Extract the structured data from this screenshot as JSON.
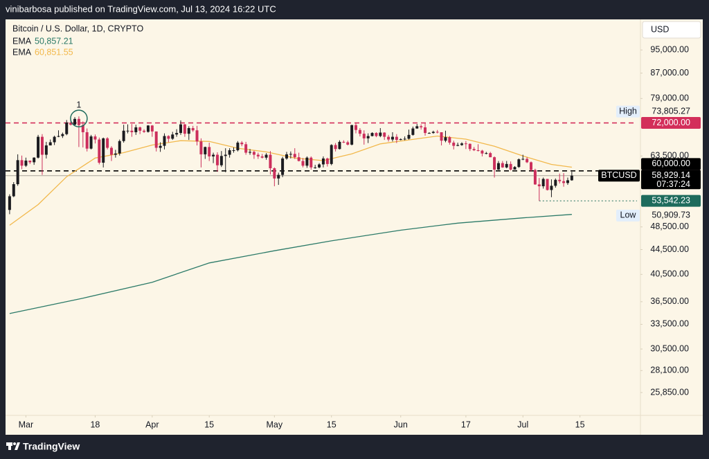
{
  "header": "vinibarbosa published on TradingView.com, Jul 13, 2024 16:22 UTC",
  "footer": {
    "brand": "TradingView"
  },
  "chart_data": {
    "type": "candlestick",
    "title": "Bitcoin / U.S. Dollar, 1D, CRYPTO",
    "currency": "USD",
    "log_scale": true,
    "up_color": "#1b1b1f",
    "down_color": "#cc2f5c",
    "xlim": [
      "2024-02-25",
      "2024-07-29"
    ],
    "xticks": [
      {
        "value": "2024-03-01",
        "label": "Mar"
      },
      {
        "value": "2024-03-18",
        "label": "18"
      },
      {
        "value": "2024-04-01",
        "label": "Apr"
      },
      {
        "value": "2024-04-15",
        "label": "15"
      },
      {
        "value": "2024-05-01",
        "label": "May"
      },
      {
        "value": "2024-05-15",
        "label": "15"
      },
      {
        "value": "2024-06-01",
        "label": "Jun"
      },
      {
        "value": "2024-06-17",
        "label": "17"
      },
      {
        "value": "2024-07-01",
        "label": "Jul"
      },
      {
        "value": "2024-07-15",
        "label": "15"
      }
    ],
    "ylim": [
      23700,
      106700
    ],
    "yticks": [
      {
        "value": 95000,
        "label": "95,000.00"
      },
      {
        "value": 87000,
        "label": "87,000.00"
      },
      {
        "value": 79000,
        "label": "79,000.00"
      },
      {
        "value": 63500,
        "label": "63,500.00"
      },
      {
        "value": 48500,
        "label": "48,500.00"
      },
      {
        "value": 44500,
        "label": "44,500.00"
      },
      {
        "value": 40500,
        "label": "40,500.00"
      },
      {
        "value": 36500,
        "label": "36,500.00"
      },
      {
        "value": 33500,
        "label": "33,500.00"
      },
      {
        "value": 30500,
        "label": "30,500.00"
      },
      {
        "value": 28100,
        "label": "28,100.00"
      },
      {
        "value": 25850,
        "label": "25,850.00"
      }
    ],
    "x": [
      "2024-02-26",
      "2024-02-27",
      "2024-02-28",
      "2024-02-29",
      "2024-03-01",
      "2024-03-02",
      "2024-03-03",
      "2024-03-04",
      "2024-03-05",
      "2024-03-06",
      "2024-03-07",
      "2024-03-08",
      "2024-03-09",
      "2024-03-10",
      "2024-03-11",
      "2024-03-12",
      "2024-03-13",
      "2024-03-14",
      "2024-03-15",
      "2024-03-16",
      "2024-03-17",
      "2024-03-18",
      "2024-03-19",
      "2024-03-20",
      "2024-03-21",
      "2024-03-22",
      "2024-03-23",
      "2024-03-24",
      "2024-03-25",
      "2024-03-26",
      "2024-03-27",
      "2024-03-28",
      "2024-03-29",
      "2024-03-30",
      "2024-03-31",
      "2024-04-01",
      "2024-04-02",
      "2024-04-03",
      "2024-04-04",
      "2024-04-05",
      "2024-04-06",
      "2024-04-07",
      "2024-04-08",
      "2024-04-09",
      "2024-04-10",
      "2024-04-11",
      "2024-04-12",
      "2024-04-13",
      "2024-04-14",
      "2024-04-15",
      "2024-04-16",
      "2024-04-17",
      "2024-04-18",
      "2024-04-19",
      "2024-04-20",
      "2024-04-21",
      "2024-04-22",
      "2024-04-23",
      "2024-04-24",
      "2024-04-25",
      "2024-04-26",
      "2024-04-27",
      "2024-04-28",
      "2024-04-29",
      "2024-04-30",
      "2024-05-01",
      "2024-05-02",
      "2024-05-03",
      "2024-05-04",
      "2024-05-05",
      "2024-05-06",
      "2024-05-07",
      "2024-05-08",
      "2024-05-09",
      "2024-05-10",
      "2024-05-11",
      "2024-05-12",
      "2024-05-13",
      "2024-05-14",
      "2024-05-15",
      "2024-05-16",
      "2024-05-17",
      "2024-05-18",
      "2024-05-19",
      "2024-05-20",
      "2024-05-21",
      "2024-05-22",
      "2024-05-23",
      "2024-05-24",
      "2024-05-25",
      "2024-05-26",
      "2024-05-27",
      "2024-05-28",
      "2024-05-29",
      "2024-05-30",
      "2024-05-31",
      "2024-06-01",
      "2024-06-02",
      "2024-06-03",
      "2024-06-04",
      "2024-06-05",
      "2024-06-06",
      "2024-06-07",
      "2024-06-08",
      "2024-06-09",
      "2024-06-10",
      "2024-06-11",
      "2024-06-12",
      "2024-06-13",
      "2024-06-14",
      "2024-06-15",
      "2024-06-16",
      "2024-06-17",
      "2024-06-18",
      "2024-06-19",
      "2024-06-20",
      "2024-06-21",
      "2024-06-22",
      "2024-06-23",
      "2024-06-24",
      "2024-06-25",
      "2024-06-26",
      "2024-06-27",
      "2024-06-28",
      "2024-06-29",
      "2024-06-30",
      "2024-07-01",
      "2024-07-02",
      "2024-07-03",
      "2024-07-04",
      "2024-07-05",
      "2024-07-06",
      "2024-07-07",
      "2024-07-08",
      "2024-07-09",
      "2024-07-10",
      "2024-07-11",
      "2024-07-12",
      "2024-07-13"
    ],
    "open": [
      51730,
      54490,
      57050,
      62500,
      61200,
      62400,
      62000,
      63100,
      68300,
      63800,
      66100,
      66900,
      68300,
      68500,
      69000,
      72100,
      71500,
      73100,
      71400,
      69500,
      65300,
      68400,
      67600,
      61900,
      67900,
      65500,
      63800,
      64100,
      67200,
      69900,
      69900,
      69500,
      70800,
      69900,
      69600,
      71300,
      69700,
      65500,
      66000,
      68500,
      67800,
      68900,
      69300,
      71600,
      69100,
      70600,
      70000,
      67100,
      63900,
      65700,
      63400,
      63800,
      61300,
      63500,
      63800,
      64900,
      64900,
      66800,
      66400,
      64300,
      64500,
      63800,
      63400,
      63100,
      63800,
      60600,
      58300,
      59100,
      62900,
      63900,
      64000,
      63200,
      62300,
      61200,
      63100,
      60800,
      60800,
      61500,
      62900,
      61600,
      66200,
      65200,
      67000,
      66900,
      66300,
      71400,
      70100,
      69100,
      67900,
      68500,
      69300,
      68500,
      69400,
      68300,
      67600,
      68300,
      67500,
      67700,
      67800,
      68800,
      70500,
      71100,
      70800,
      69300,
      69300,
      69600,
      69500,
      67300,
      68200,
      66800,
      66000,
      66200,
      66600,
      66500,
      65200,
      64900,
      64800,
      64100,
      64200,
      63200,
      60300,
      61800,
      60800,
      61600,
      60300,
      60900,
      62700,
      62800,
      62000,
      60200,
      57000,
      56600,
      58200,
      55800,
      56700,
      58000,
      57700,
      57300,
      57900
    ],
    "high": [
      54900,
      57500,
      63900,
      63600,
      63100,
      62400,
      63200,
      68800,
      69000,
      67000,
      67600,
      68600,
      70000,
      69400,
      72800,
      72900,
      73600,
      73805.27,
      72400,
      70500,
      68800,
      68900,
      68100,
      68100,
      68200,
      65900,
      65000,
      67600,
      71500,
      71600,
      71700,
      71500,
      71000,
      70300,
      71400,
      71400,
      69700,
      66900,
      69200,
      68700,
      69600,
      70300,
      72700,
      71700,
      71100,
      71200,
      71200,
      67900,
      65800,
      66800,
      64300,
      64400,
      64700,
      65400,
      65400,
      65600,
      67200,
      67200,
      67000,
      65200,
      64800,
      64300,
      64000,
      64200,
      64700,
      60800,
      59600,
      63300,
      64500,
      64600,
      65400,
      64300,
      63000,
      63400,
      63400,
      61400,
      61800,
      63400,
      63100,
      66400,
      66700,
      67400,
      67400,
      67300,
      71500,
      71900,
      70600,
      70000,
      69200,
      69500,
      69500,
      70600,
      69500,
      68800,
      69500,
      69000,
      67900,
      68400,
      70200,
      71000,
      71700,
      71600,
      71900,
      69500,
      69900,
      70100,
      69500,
      69900,
      68500,
      67300,
      66800,
      66900,
      67200,
      66600,
      65700,
      66400,
      65000,
      64500,
      64500,
      63400,
      62300,
      62300,
      62300,
      62200,
      61100,
      62900,
      63800,
      63200,
      62200,
      60500,
      58400,
      58500,
      58200,
      58100,
      58300,
      59400,
      59500,
      58500,
      59800
    ],
    "low": [
      50900,
      54300,
      56700,
      60400,
      60900,
      61600,
      61400,
      62900,
      59100,
      62900,
      66300,
      66200,
      68200,
      68000,
      68700,
      71300,
      71400,
      65700,
      65600,
      64600,
      65100,
      66600,
      61500,
      60800,
      65100,
      62300,
      63100,
      63600,
      66800,
      69200,
      68300,
      68800,
      69000,
      69300,
      69400,
      68300,
      64600,
      64500,
      65100,
      66900,
      67500,
      68300,
      68800,
      68300,
      67500,
      69600,
      66100,
      60800,
      62800,
      62300,
      61800,
      59800,
      60900,
      59700,
      63100,
      64300,
      64600,
      65900,
      63800,
      63800,
      62800,
      62800,
      62900,
      62600,
      59200,
      56600,
      56900,
      58600,
      62600,
      62900,
      62800,
      62200,
      60800,
      60700,
      60300,
      60500,
      60600,
      60800,
      61000,
      61300,
      64600,
      65100,
      66700,
      66100,
      66100,
      69200,
      68400,
      66300,
      66700,
      68400,
      68200,
      68200,
      67500,
      67100,
      67100,
      66700,
      67400,
      67400,
      67600,
      68600,
      70400,
      70200,
      68600,
      69100,
      69100,
      69200,
      66100,
      66900,
      66300,
      65100,
      65900,
      66000,
      65200,
      64700,
      64700,
      64600,
      63400,
      63900,
      63200,
      58500,
      60200,
      60700,
      60600,
      60100,
      60300,
      60700,
      62500,
      61800,
      59800,
      56900,
      53542.23,
      56100,
      55700,
      54300,
      56300,
      57200,
      56500,
      56900,
      57800
    ],
    "close": [
      54490,
      57050,
      62500,
      61200,
      62400,
      62000,
      63100,
      68300,
      63800,
      66100,
      66900,
      68300,
      68500,
      69000,
      72100,
      71500,
      73100,
      71400,
      69500,
      65300,
      68400,
      67600,
      61900,
      67900,
      65500,
      63800,
      64100,
      67200,
      69900,
      69900,
      69500,
      70800,
      69900,
      69600,
      71300,
      69700,
      65500,
      66000,
      68500,
      67800,
      68900,
      69300,
      71600,
      69100,
      70600,
      70000,
      67100,
      63900,
      65700,
      63400,
      63800,
      61300,
      63500,
      63800,
      64900,
      64900,
      66800,
      66400,
      64300,
      64500,
      63800,
      63400,
      63100,
      63800,
      60600,
      58300,
      59100,
      62900,
      63900,
      64000,
      63200,
      62300,
      61200,
      63100,
      60800,
      60800,
      61500,
      62900,
      61600,
      66200,
      65200,
      67000,
      66900,
      66300,
      71400,
      70100,
      69100,
      67900,
      68500,
      69300,
      68500,
      69400,
      68300,
      67600,
      68300,
      67500,
      67700,
      67800,
      68800,
      70500,
      71100,
      70800,
      69300,
      69300,
      69600,
      69500,
      67300,
      68200,
      66800,
      66000,
      66200,
      66600,
      66500,
      65200,
      64900,
      64800,
      64100,
      64200,
      63200,
      60300,
      61800,
      60800,
      61600,
      60300,
      60900,
      62700,
      62800,
      62000,
      60200,
      57000,
      56600,
      58200,
      55800,
      56700,
      58000,
      57700,
      57300,
      57900,
      58929.14
    ],
    "overlays": [
      {
        "name": "EMA",
        "last": 50857.21,
        "last_label": "50,857.21",
        "color": "#2b7a68",
        "x": [
          "2024-02-26",
          "2024-03-15",
          "2024-04-01",
          "2024-04-15",
          "2024-05-01",
          "2024-05-15",
          "2024-06-01",
          "2024-06-15",
          "2024-07-01",
          "2024-07-13"
        ],
        "values": [
          34900,
          37000,
          39300,
          42300,
          44300,
          46000,
          47900,
          49200,
          50200,
          50857.21
        ]
      },
      {
        "name": "EMA",
        "last": 60851.55,
        "last_label": "60,851.55",
        "color": "#f2b84b",
        "x": [
          "2024-02-26",
          "2024-03-04",
          "2024-03-11",
          "2024-03-18",
          "2024-03-25",
          "2024-04-01",
          "2024-04-08",
          "2024-04-15",
          "2024-04-22",
          "2024-04-29",
          "2024-05-06",
          "2024-05-13",
          "2024-05-20",
          "2024-05-27",
          "2024-06-03",
          "2024-06-10",
          "2024-06-17",
          "2024-06-24",
          "2024-07-01",
          "2024-07-08",
          "2024-07-13"
        ],
        "values": [
          48800,
          52800,
          58700,
          63000,
          64300,
          66200,
          67300,
          67100,
          65400,
          64500,
          63000,
          62400,
          64000,
          66500,
          67500,
          68500,
          67700,
          65900,
          63500,
          61500,
          60851.55
        ]
      }
    ],
    "price_labels": [
      {
        "name": "High",
        "value": 73805.27,
        "label": "73,805.27"
      },
      {
        "value": 72000,
        "label": "72,000.00",
        "color": "#d32f5a",
        "line": "dashed"
      },
      {
        "value": 60000,
        "label": "60,000.00",
        "color": "#000000",
        "line": "dashed"
      },
      {
        "name": "BTCUSD",
        "value": 58929.14,
        "label": "58,929.14",
        "countdown": "07:37:24",
        "color": "#000000",
        "line": "solid"
      },
      {
        "value": 53542.23,
        "label": "53,542.23",
        "color": "#1e6b5c",
        "line": "dotted",
        "from": "2024-07-05"
      },
      {
        "name": "Low",
        "value": 50909.73,
        "label": "50,909.73"
      }
    ],
    "annotations": [
      {
        "text": "1",
        "x": "2024-03-14",
        "y": 73805.27,
        "color": "#1e6b5c"
      }
    ]
  }
}
